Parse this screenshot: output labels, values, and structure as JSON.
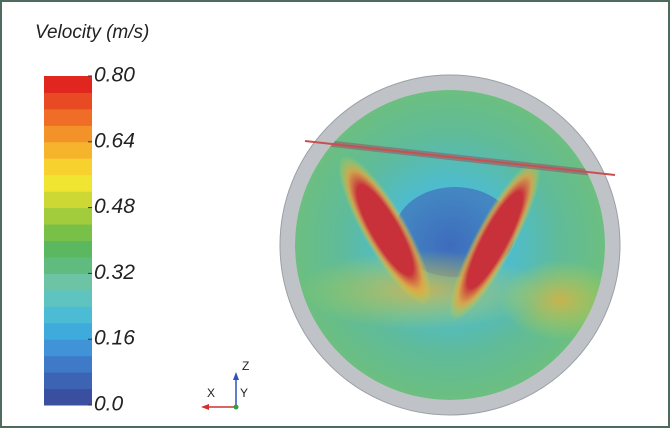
{
  "legend": {
    "title": "Velocity (m/s)",
    "range": [
      0,
      0.8
    ],
    "ticks": [
      {
        "value": 0.8,
        "label": "0.80"
      },
      0.64,
      0.48,
      0.32,
      0.16,
      {
        "value": 0,
        "label": "0.0"
      }
    ],
    "colors": [
      "#3a4fa0",
      "#3d63b5",
      "#3f7ac8",
      "#3f93d6",
      "#3fabdc",
      "#4cbcd4",
      "#5fc4c0",
      "#6cc4a4",
      "#5fbb7e",
      "#5cb860",
      "#79c048",
      "#a3cc3c",
      "#cdd835",
      "#f0e631",
      "#f7d22e",
      "#f5b42c",
      "#f39229",
      "#ef6d27",
      "#e84b24",
      "#e0261f"
    ]
  },
  "axes_triad": {
    "labels": [
      "Z",
      "X",
      "Y"
    ]
  }
}
